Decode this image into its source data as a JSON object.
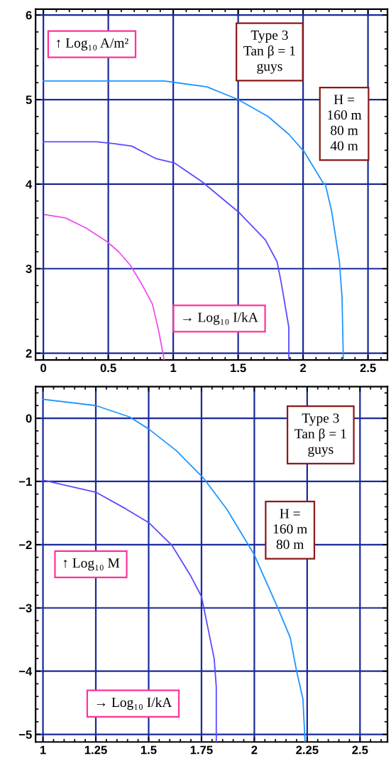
{
  "chart_data": [
    {
      "type": "line",
      "xlabel": "→ Log₁₀ I/kA",
      "ylabel": "↑ Log₁₀ A/m²",
      "annotations": [
        "Type 3\nTan β = 1\nguys",
        "H =\n160 m\n80 m\n40 m"
      ],
      "xlim": [
        -0.06,
        2.65
      ],
      "ylim": [
        1.92,
        6.07
      ],
      "xticks": [
        0,
        0.5,
        1,
        1.5,
        2,
        2.5
      ],
      "yticks": [
        2,
        3,
        4,
        5,
        6
      ],
      "grid": true,
      "marker": "none",
      "line_style": "solid",
      "series": [
        {
          "color": "#1e96ff",
          "x": [
            0,
            0.5,
            0.93,
            1.26,
            1.5,
            1.73,
            1.89,
            2.01,
            2.16,
            2.17,
            2.22,
            2.28,
            2.3,
            2.31
          ],
          "values": [
            5.22,
            5.22,
            5.22,
            5.15,
            5.0,
            4.8,
            4.59,
            4.38,
            4.0,
            4.01,
            3.68,
            3.08,
            2.66,
            1.92
          ]
        },
        {
          "color": "#5a4cff",
          "x": [
            0,
            0.41,
            0.54,
            0.68,
            0.87,
            1.01,
            1.22,
            1.51,
            1.71,
            1.8,
            1.83,
            1.89,
            1.89
          ],
          "values": [
            4.5,
            4.5,
            4.48,
            4.45,
            4.3,
            4.25,
            4.03,
            3.66,
            3.34,
            3.08,
            2.85,
            2.31,
            1.92
          ]
        },
        {
          "color": "#ee4ef0",
          "x": [
            0.01,
            0.17,
            0.33,
            0.49,
            0.58,
            0.67,
            0.76,
            0.84,
            0.89,
            0.93
          ],
          "values": [
            3.64,
            3.6,
            3.48,
            3.32,
            3.2,
            3.04,
            2.81,
            2.58,
            2.25,
            1.92
          ]
        }
      ]
    },
    {
      "type": "line",
      "xlabel": "→ Log₁₀ I/kA",
      "ylabel": "↑ Log₁₀ M",
      "annotations": [
        "Type 3\nTan β = 1\nguys",
        "H =\n160 m\n80 m"
      ],
      "xlim": [
        0.965,
        2.63
      ],
      "ylim": [
        -5.12,
        0.5
      ],
      "xticks": [
        1,
        1.25,
        1.5,
        1.75,
        2,
        2.25,
        2.5
      ],
      "yticks": [
        {
          "value": -5,
          "label": "−5"
        },
        {
          "value": -4,
          "label": "−4"
        },
        {
          "value": -3,
          "label": "−3"
        },
        {
          "value": -2,
          "label": "−2"
        },
        {
          "value": -1,
          "label": "−1"
        },
        0
      ],
      "grid": true,
      "marker": "none",
      "line_style": "solid",
      "series": [
        {
          "color": "#1e96ff",
          "x": [
            1.0,
            1.25,
            1.41,
            1.5,
            1.63,
            1.76,
            1.87,
            2.0,
            2.03,
            2.11,
            2.17,
            2.2,
            2.23,
            2.24
          ],
          "values": [
            0.3,
            0.2,
            0.02,
            -0.17,
            -0.51,
            -0.95,
            -1.44,
            -2.16,
            -2.39,
            -2.99,
            -3.47,
            -4.0,
            -4.44,
            -5.12
          ]
        },
        {
          "color": "#5a4cff",
          "x": [
            1.0,
            1.25,
            1.39,
            1.5,
            1.61,
            1.7,
            1.75,
            1.78,
            1.81,
            1.82,
            1.82
          ],
          "values": [
            -0.98,
            -1.17,
            -1.43,
            -1.65,
            -2.01,
            -2.5,
            -2.82,
            -3.31,
            -3.8,
            -4.25,
            -5.12
          ]
        }
      ]
    }
  ]
}
